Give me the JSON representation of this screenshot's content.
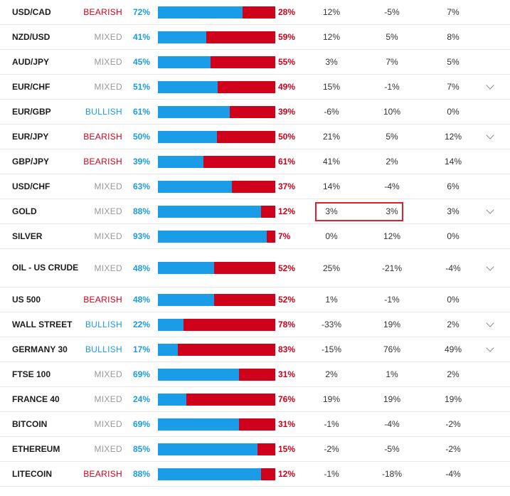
{
  "rows": [
    {
      "name": "USD/CAD",
      "bias": "BEARISH",
      "long": "72%",
      "long_pct": 72,
      "short": "28%",
      "ch1": "12%",
      "ch2": "-5%",
      "ch3": "7%",
      "expand": false
    },
    {
      "name": "NZD/USD",
      "bias": "MIXED",
      "long": "41%",
      "long_pct": 41,
      "short": "59%",
      "ch1": "12%",
      "ch2": "5%",
      "ch3": "8%",
      "expand": false
    },
    {
      "name": "AUD/JPY",
      "bias": "MIXED",
      "long": "45%",
      "long_pct": 45,
      "short": "55%",
      "ch1": "3%",
      "ch2": "7%",
      "ch3": "5%",
      "expand": false
    },
    {
      "name": "EUR/CHF",
      "bias": "MIXED",
      "long": "51%",
      "long_pct": 51,
      "short": "49%",
      "ch1": "15%",
      "ch2": "-1%",
      "ch3": "7%",
      "expand": true
    },
    {
      "name": "EUR/GBP",
      "bias": "BULLISH",
      "long": "61%",
      "long_pct": 61,
      "short": "39%",
      "ch1": "-6%",
      "ch2": "10%",
      "ch3": "0%",
      "expand": false
    },
    {
      "name": "EUR/JPY",
      "bias": "BEARISH",
      "long": "50%",
      "long_pct": 50,
      "short": "50%",
      "ch1": "21%",
      "ch2": "5%",
      "ch3": "12%",
      "expand": true
    },
    {
      "name": "GBP/JPY",
      "bias": "BEARISH",
      "long": "39%",
      "long_pct": 39,
      "short": "61%",
      "ch1": "41%",
      "ch2": "2%",
      "ch3": "14%",
      "expand": false
    },
    {
      "name": "USD/CHF",
      "bias": "MIXED",
      "long": "63%",
      "long_pct": 63,
      "short": "37%",
      "ch1": "14%",
      "ch2": "-4%",
      "ch3": "6%",
      "expand": false
    },
    {
      "name": "GOLD",
      "bias": "MIXED",
      "long": "88%",
      "long_pct": 88,
      "short": "12%",
      "ch1": "3%",
      "ch2": "3%",
      "ch3": "3%",
      "expand": true
    },
    {
      "name": "SILVER",
      "bias": "MIXED",
      "long": "93%",
      "long_pct": 93,
      "short": "7%",
      "ch1": "0%",
      "ch2": "12%",
      "ch3": "0%",
      "expand": false
    },
    {
      "name": "OIL - US CRUDE",
      "bias": "MIXED",
      "long": "48%",
      "long_pct": 48,
      "short": "52%",
      "ch1": "25%",
      "ch2": "-21%",
      "ch3": "-4%",
      "expand": true
    },
    {
      "name": "US 500",
      "bias": "BEARISH",
      "long": "48%",
      "long_pct": 48,
      "short": "52%",
      "ch1": "1%",
      "ch2": "-1%",
      "ch3": "0%",
      "expand": false
    },
    {
      "name": "WALL STREET",
      "bias": "BULLISH",
      "long": "22%",
      "long_pct": 22,
      "short": "78%",
      "ch1": "-33%",
      "ch2": "19%",
      "ch3": "2%",
      "expand": true
    },
    {
      "name": "GERMANY 30",
      "bias": "BULLISH",
      "long": "17%",
      "long_pct": 17,
      "short": "83%",
      "ch1": "-15%",
      "ch2": "76%",
      "ch3": "49%",
      "expand": true
    },
    {
      "name": "FTSE 100",
      "bias": "MIXED",
      "long": "69%",
      "long_pct": 69,
      "short": "31%",
      "ch1": "2%",
      "ch2": "1%",
      "ch3": "2%",
      "expand": false
    },
    {
      "name": "FRANCE 40",
      "bias": "MIXED",
      "long": "24%",
      "long_pct": 24,
      "short": "76%",
      "ch1": "19%",
      "ch2": "19%",
      "ch3": "19%",
      "expand": false
    },
    {
      "name": "BITCOIN",
      "bias": "MIXED",
      "long": "69%",
      "long_pct": 69,
      "short": "31%",
      "ch1": "-1%",
      "ch2": "-4%",
      "ch3": "-2%",
      "expand": false
    },
    {
      "name": "ETHEREUM",
      "bias": "MIXED",
      "long": "85%",
      "long_pct": 85,
      "short": "15%",
      "ch1": "-2%",
      "ch2": "-5%",
      "ch3": "-2%",
      "expand": false
    },
    {
      "name": "LITECOIN",
      "bias": "BEARISH",
      "long": "88%",
      "long_pct": 88,
      "short": "12%",
      "ch1": "-1%",
      "ch2": "-18%",
      "ch3": "-4%",
      "expand": false
    }
  ],
  "colors": {
    "long": "#1a9ce6",
    "short": "#d0021b",
    "bearish": "#d0021b",
    "bullish": "#1a9ce6",
    "mixed": "#999999",
    "highlight": "#e0202a"
  },
  "icons": {
    "expand": "chevron-down-icon"
  }
}
